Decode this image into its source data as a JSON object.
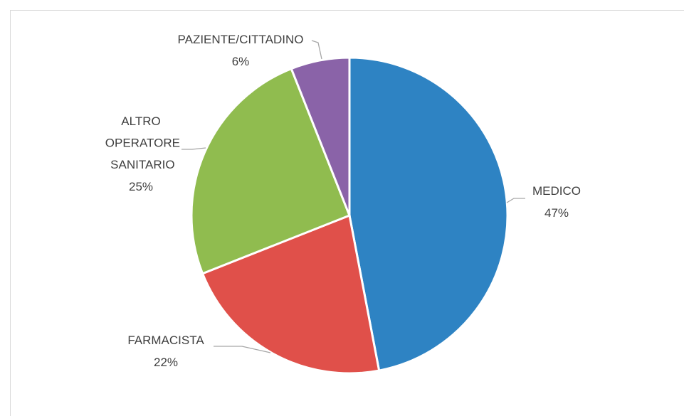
{
  "chart_data": {
    "type": "pie",
    "categories": [
      "MEDICO",
      "FARMACISTA",
      "ALTRO OPERATORE SANITARIO",
      "PAZIENTE/CITTADINO"
    ],
    "values": [
      47,
      22,
      25,
      6
    ],
    "value_labels": [
      "47%",
      "22%",
      "25%",
      "6%"
    ],
    "colors": [
      "#2e83c3",
      "#e0504a",
      "#90bc4f",
      "#8a63a8"
    ]
  }
}
